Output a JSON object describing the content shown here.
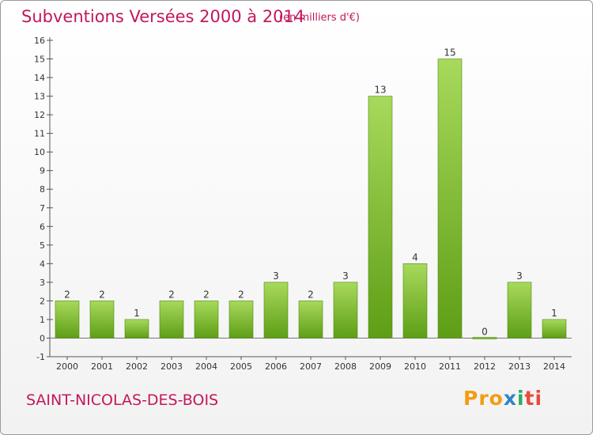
{
  "title": "Subventions Versées 2000 à 2014",
  "subtitle": "(en milliers d'€)",
  "commune": "SAINT-NICOLAS-DES-BOIS",
  "logo": {
    "text": "Proxiti",
    "colors": [
      "#f39c12",
      "#2e86c1",
      "#27ae60",
      "#e74c3c"
    ]
  },
  "chart_data": {
    "type": "bar",
    "title": "Subventions Versées 2000 à 2014",
    "subtitle": "(en milliers d'€)",
    "categories": [
      "2000",
      "2001",
      "2002",
      "2003",
      "2004",
      "2005",
      "2006",
      "2007",
      "2008",
      "2009",
      "2010",
      "2011",
      "2012",
      "2013",
      "2014"
    ],
    "values": [
      2,
      2,
      1,
      2,
      2,
      2,
      3,
      2,
      3,
      13,
      4,
      15,
      0,
      3,
      1
    ],
    "ylim": [
      -1,
      16
    ],
    "yticks": [
      -1,
      0,
      1,
      2,
      3,
      4,
      5,
      6,
      7,
      8,
      9,
      10,
      11,
      12,
      13,
      14,
      15,
      16
    ],
    "grid": false,
    "legend": "none",
    "bar_color_light": "#a8d95c",
    "bar_color_dark": "#5e9e16"
  }
}
